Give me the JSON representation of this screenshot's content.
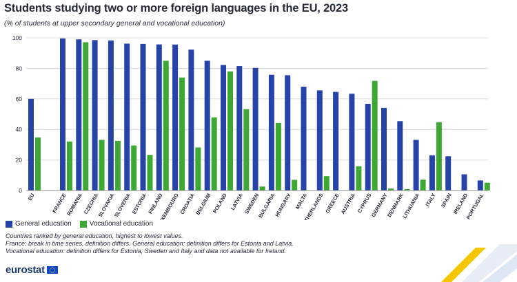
{
  "title": "Students studying two or more foreign languages in the EU, 2023",
  "subtitle": "(% of students at upper secondary general and vocational education)",
  "colors": {
    "general": "#2644a7",
    "vocational": "#3ea834",
    "grid": "#d9d9d9",
    "text": "#262b38"
  },
  "legend": {
    "general_label": "General education",
    "vocational_label": "Vocational education"
  },
  "notes": [
    "Countries ranked by general education, highest to lowest values.",
    "France: break in time series, definition differs. General education: definition differs for Estonia and Latvia.",
    "Vocational education: definition differs for Estonia, Sweden and Italy and data not available for Ireland."
  ],
  "brand": {
    "name": "eurostat",
    "flag_icon": "eu-flag-icon"
  },
  "chart_data": {
    "type": "bar",
    "title": "Students studying two or more foreign languages in the EU, 2023",
    "ylim": [
      0,
      100
    ],
    "yticks": [
      0,
      20,
      40,
      60,
      80,
      100
    ],
    "grid": true,
    "categories": [
      "EU",
      "FRANCE",
      "ROMANIA",
      "CZECHIA",
      "SLOVAKIA",
      "SLOVENIA",
      "ESTONIA",
      "FINLAND",
      "LUXEMBOURG",
      "CROATIA",
      "BELGIUM",
      "POLAND",
      "LATVIA",
      "SWEDEN",
      "BULGARIA",
      "HUNGARY",
      "MALTA",
      "NETHERLANDS",
      "GREECE",
      "AUSTRIA",
      "CYPRUS",
      "GERMANY",
      "DENMARK",
      "LITHUANIA",
      "ITALY",
      "SPAIN",
      "IRELAND",
      "PORTUGAL"
    ],
    "series": [
      {
        "name": "General education",
        "values": [
          60,
          99.6,
          99,
          98.5,
          98.3,
          96.2,
          96,
          95.7,
          95.6,
          92.3,
          85,
          82.2,
          81.5,
          80.3,
          75.8,
          75.5,
          68,
          65.6,
          64.6,
          63.4,
          56.8,
          54.1,
          45.4,
          33.2,
          23.1,
          22.4,
          10.6,
          6.6
        ]
      },
      {
        "name": "Vocational education",
        "values": [
          34.8,
          32.1,
          97.1,
          33.2,
          32.5,
          29.5,
          23.3,
          85,
          74,
          28.2,
          47.9,
          78,
          53.3,
          2.6,
          44.2,
          7,
          null,
          9.4,
          null,
          15.9,
          71.8,
          1.3,
          0.9,
          7.1,
          44.8,
          null,
          null,
          5.1
        ]
      }
    ]
  }
}
